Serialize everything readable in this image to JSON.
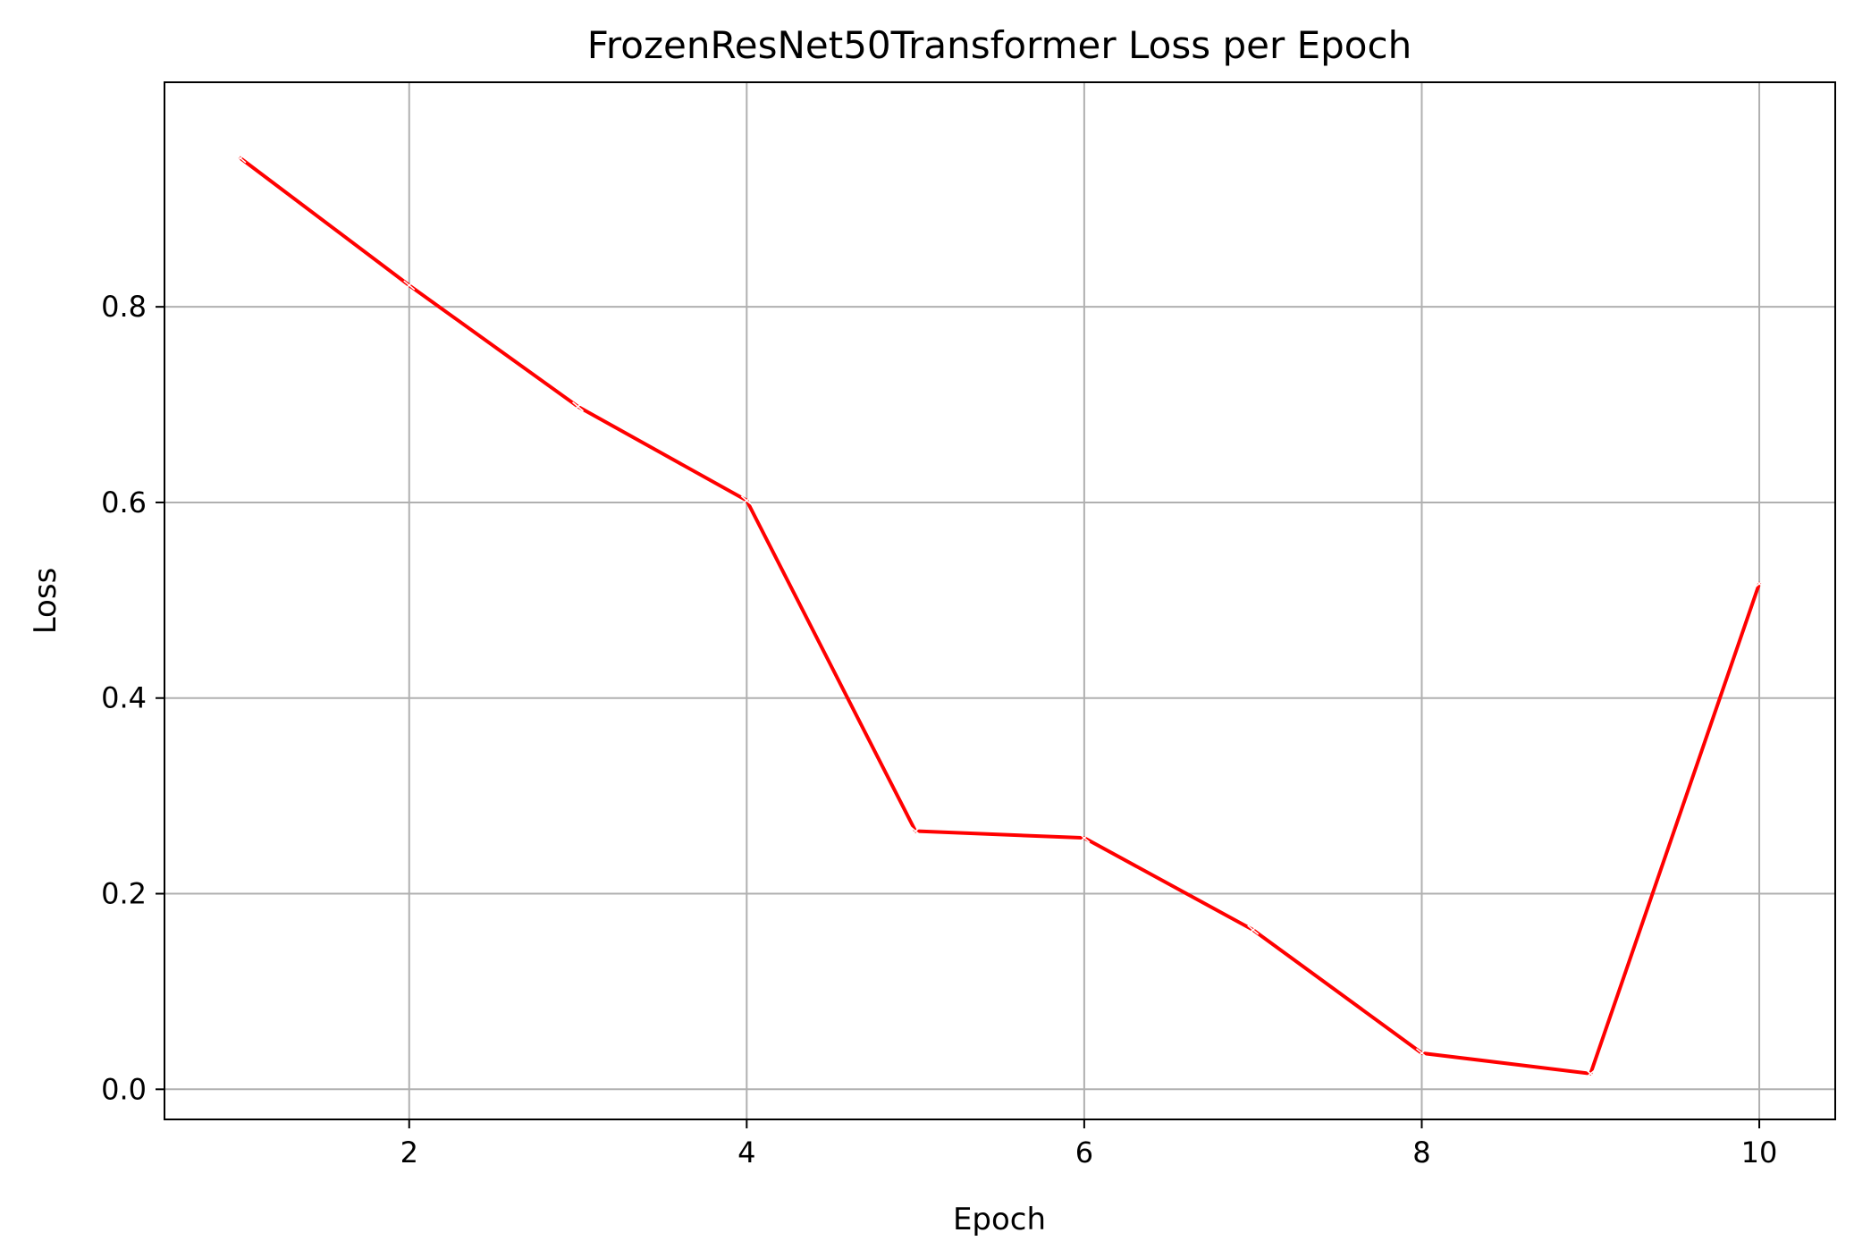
{
  "chart_data": {
    "type": "line",
    "title": "FrozenResNet50Transformer Loss per Epoch",
    "xlabel": "Epoch",
    "ylabel": "Loss",
    "x": [
      1,
      2,
      3,
      4,
      5,
      6,
      7,
      8,
      9,
      10
    ],
    "series": [
      {
        "values": [
          0.952,
          0.822,
          0.698,
          0.602,
          0.264,
          0.257,
          0.163,
          0.037,
          0.016,
          0.517
        ]
      }
    ],
    "xlim": [
      0.55,
      10.45
    ],
    "ylim": [
      -0.0308,
      1.0296
    ],
    "xticks": [
      "2",
      "4",
      "6",
      "8",
      "10"
    ],
    "yticks": [
      "0.0",
      "0.2",
      "0.4",
      "0.6",
      "0.8"
    ],
    "grid": true,
    "colors": {
      "line": "#ff0000",
      "grid": "#b0b0b0",
      "axes": "#000000"
    }
  }
}
